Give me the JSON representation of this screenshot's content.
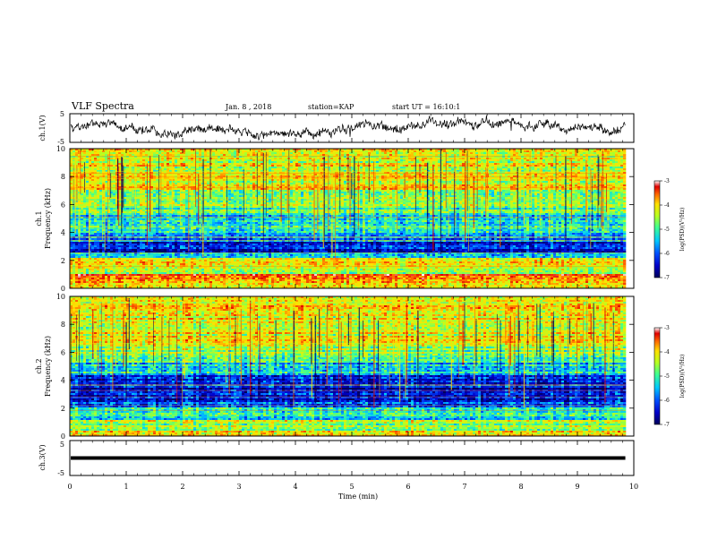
{
  "header": {
    "title": "VLF Spectra",
    "date": "Jan. 8 , 2018",
    "station": "station=KAP",
    "start": "start UT = 16:10:1"
  },
  "colors": {
    "waveform": "#000000",
    "colormap": [
      "#00005a",
      "#0000c8",
      "#0050ff",
      "#00c8ff",
      "#40ff90",
      "#b8ff20",
      "#ffe000",
      "#ff6a00",
      "#e00000",
      "#ffffff"
    ]
  },
  "chart_data": [
    {
      "type": "line",
      "panel": "ch1-waveform",
      "ylabel": "ch.1(V)",
      "ylim": [
        -5,
        5
      ],
      "yticks": [
        "5",
        "-5"
      ],
      "xlim": [
        0,
        10
      ],
      "x_end": 9.85,
      "mean": 0.8,
      "note": "noisy waveform"
    },
    {
      "type": "heatmap",
      "panel": "ch1-spectrogram",
      "ylabel": "ch.1\nFrequency (kHz)",
      "ylim": [
        0,
        10
      ],
      "yticks": [
        "0",
        "2",
        "4",
        "6",
        "8",
        "10"
      ],
      "xlim": [
        0,
        10
      ],
      "x_end": 9.85,
      "colorbar": {
        "label": "log(PSD)(V²/Hz)",
        "ticks": [
          "-3",
          "-4",
          "-5",
          "-6",
          "-7"
        ],
        "range": [
          -7,
          -3
        ]
      },
      "bands": [
        {
          "f0": 0.0,
          "f1": 0.5,
          "level": -4.2
        },
        {
          "f0": 0.5,
          "f1": 1.0,
          "level": -3.9
        },
        {
          "f0": 1.0,
          "f1": 1.6,
          "level": -4.8
        },
        {
          "f0": 1.6,
          "f1": 2.2,
          "level": -4.6
        },
        {
          "f0": 2.2,
          "f1": 2.6,
          "level": -5.6
        },
        {
          "f0": 2.6,
          "f1": 3.3,
          "level": -6.4
        },
        {
          "f0": 3.3,
          "f1": 4.0,
          "level": -5.9
        },
        {
          "f0": 4.0,
          "f1": 5.2,
          "level": -5.5
        },
        {
          "f0": 5.2,
          "f1": 5.8,
          "level": -5.2
        },
        {
          "f0": 5.8,
          "f1": 7.0,
          "level": -4.9
        },
        {
          "f0": 7.0,
          "f1": 10.0,
          "level": -4.6
        }
      ]
    },
    {
      "type": "heatmap",
      "panel": "ch2-spectrogram",
      "ylabel": "ch.2\nFrequency (kHz)",
      "ylim": [
        0,
        10
      ],
      "yticks": [
        "0",
        "2",
        "4",
        "6",
        "8",
        "10"
      ],
      "xlim": [
        0,
        10
      ],
      "x_end": 9.85,
      "colorbar": {
        "label": "log(PSD)(V²/Hz)",
        "ticks": [
          "-3",
          "-4",
          "-5",
          "-6",
          "-7"
        ],
        "range": [
          -7,
          -3
        ]
      },
      "bands": [
        {
          "f0": 0.0,
          "f1": 0.4,
          "level": -4.3
        },
        {
          "f0": 0.4,
          "f1": 1.2,
          "level": -4.8
        },
        {
          "f0": 1.2,
          "f1": 2.0,
          "level": -5.4
        },
        {
          "f0": 2.0,
          "f1": 2.6,
          "level": -6.1
        },
        {
          "f0": 2.6,
          "f1": 3.4,
          "level": -6.5
        },
        {
          "f0": 3.4,
          "f1": 4.4,
          "level": -6.2
        },
        {
          "f0": 4.4,
          "f1": 5.2,
          "level": -5.6
        },
        {
          "f0": 5.2,
          "f1": 6.4,
          "level": -5.0
        },
        {
          "f0": 6.4,
          "f1": 10.0,
          "level": -4.5
        }
      ]
    },
    {
      "type": "line",
      "panel": "ch3-waveform",
      "ylabel": "ch.3(V)",
      "ylim": [
        -5,
        5
      ],
      "yticks": [
        "5",
        "-5"
      ],
      "xlim": [
        0,
        10
      ],
      "x_end": 9.85,
      "mean": 0,
      "note": "flat saturated trace"
    }
  ],
  "xaxis": {
    "label": "Time (min)",
    "ticks": [
      "0",
      "1",
      "2",
      "3",
      "4",
      "5",
      "6",
      "7",
      "8",
      "9",
      "10"
    ]
  }
}
